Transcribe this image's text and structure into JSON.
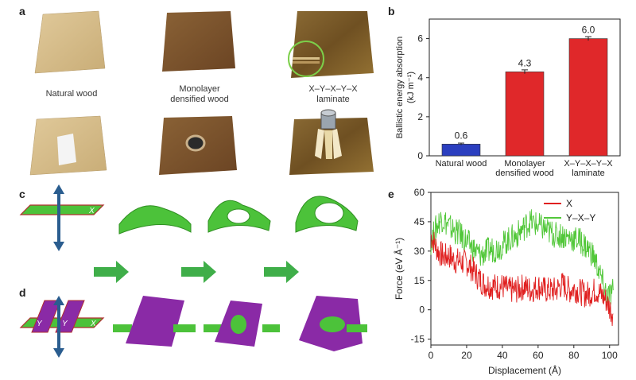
{
  "panel_labels": {
    "a": "a",
    "b": "b",
    "c": "c",
    "d": "d",
    "e": "e"
  },
  "panel_a": {
    "captions": [
      "Natural wood",
      "Monolayer\ndensified wood",
      "X–Y–X–Y–X\nlaminate"
    ]
  },
  "chart_data": [
    {
      "type": "bar",
      "panel": "b",
      "categories": [
        "Natural wood",
        "Monolayer\ndensified wood",
        "X–Y–X–Y–X\nlaminate"
      ],
      "values": [
        0.6,
        4.3,
        6.0
      ],
      "value_labels": [
        "0.6",
        "4.3",
        "6.0"
      ],
      "errors": [
        0.05,
        0.1,
        0.1
      ],
      "colors": [
        "#2b3fbf",
        "#e0282a",
        "#e0282a"
      ],
      "ylabel": "Ballistic energy absorption",
      "ylabel_units": "(kJ m⁻¹)",
      "ylim": [
        0,
        7
      ],
      "yticks": [
        0,
        2,
        4,
        6
      ]
    },
    {
      "type": "line",
      "panel": "e",
      "xlabel": "Displacement (Å)",
      "ylabel": "Force (eV Å⁻¹)",
      "xlim": [
        0,
        105
      ],
      "ylim": [
        -18,
        60
      ],
      "xticks": [
        0,
        20,
        40,
        60,
        80,
        100
      ],
      "yticks": [
        -15,
        0,
        15,
        30,
        45,
        60
      ],
      "series": [
        {
          "name": "X",
          "color": "#e02020",
          "x": [
            0,
            2,
            4,
            6,
            8,
            10,
            12,
            14,
            16,
            18,
            20,
            22,
            24,
            26,
            28,
            30,
            32,
            34,
            36,
            38,
            40,
            42,
            44,
            46,
            48,
            50,
            52,
            54,
            56,
            58,
            60,
            62,
            64,
            66,
            68,
            70,
            72,
            74,
            76,
            78,
            80,
            82,
            84,
            86,
            88,
            90,
            92,
            94,
            96,
            98,
            100,
            102
          ],
          "y": [
            38,
            34,
            30,
            28,
            27,
            28,
            26,
            25,
            25,
            24,
            24,
            22,
            20,
            17,
            15,
            13,
            13,
            12,
            12,
            12,
            12,
            11,
            10,
            10,
            10,
            11,
            12,
            11,
            10,
            11,
            12,
            11,
            10,
            10,
            10,
            10,
            12,
            13,
            11,
            10,
            11,
            10,
            9,
            8,
            8,
            9,
            10,
            9,
            7,
            5,
            1,
            -2
          ]
        },
        {
          "name": "Y–X–Y",
          "color": "#52c73a",
          "x": [
            0,
            2,
            4,
            6,
            8,
            10,
            12,
            14,
            16,
            18,
            20,
            22,
            24,
            26,
            28,
            30,
            32,
            34,
            36,
            38,
            40,
            42,
            44,
            46,
            48,
            50,
            52,
            54,
            56,
            58,
            60,
            62,
            64,
            66,
            68,
            70,
            72,
            74,
            76,
            78,
            80,
            82,
            84,
            86,
            88,
            90,
            92,
            94,
            96,
            98,
            100,
            102
          ],
          "y": [
            35,
            40,
            44,
            47,
            45,
            43,
            41,
            40,
            39,
            37,
            35,
            33,
            31,
            29,
            28,
            29,
            30,
            31,
            31,
            32,
            33,
            35,
            36,
            37,
            38,
            40,
            42,
            44,
            45,
            44,
            43,
            42,
            41,
            40,
            39,
            38,
            38,
            38,
            37,
            37,
            36,
            36,
            35,
            33,
            31,
            29,
            25,
            20,
            14,
            9,
            7,
            10
          ]
        }
      ]
    }
  ]
}
